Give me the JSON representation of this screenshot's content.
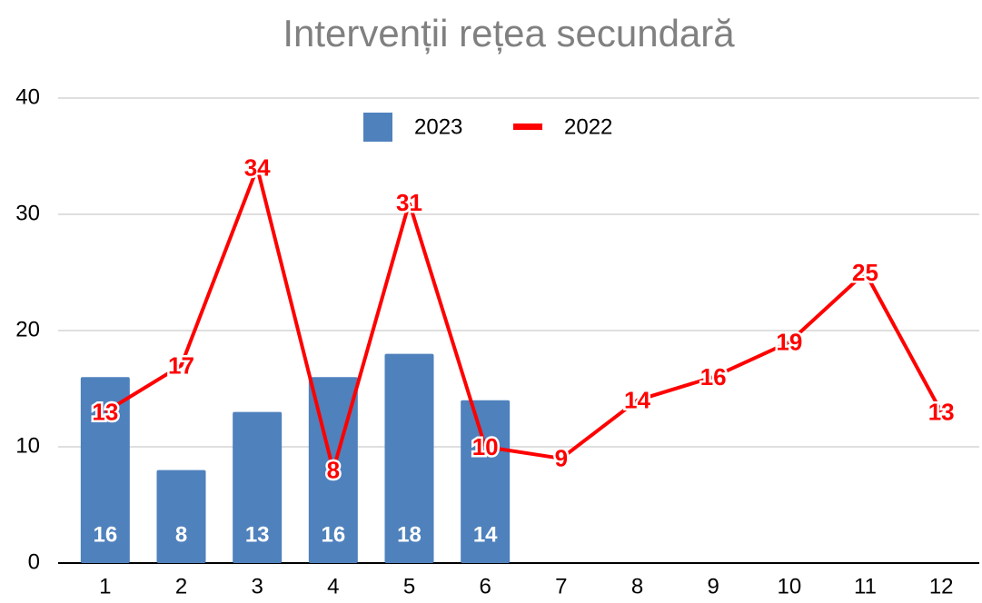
{
  "chart_data": {
    "type": "bar",
    "title": "Intervenții rețea secundară",
    "categories": [
      "1",
      "2",
      "3",
      "4",
      "5",
      "6",
      "7",
      "8",
      "9",
      "10",
      "11",
      "12"
    ],
    "series": [
      {
        "name": "2023",
        "type": "bar",
        "color": "#4f81bd",
        "values": [
          16,
          8,
          13,
          16,
          18,
          14,
          null,
          null,
          null,
          null,
          null,
          null
        ]
      },
      {
        "name": "2022",
        "type": "line",
        "color": "#ff0000",
        "values": [
          13,
          17,
          34,
          8,
          31,
          10,
          9,
          14,
          16,
          19,
          25,
          13
        ]
      }
    ],
    "ylim": [
      0,
      40
    ],
    "yticks": [
      0,
      10,
      20,
      30,
      40
    ],
    "grid": true,
    "legend": "top"
  }
}
